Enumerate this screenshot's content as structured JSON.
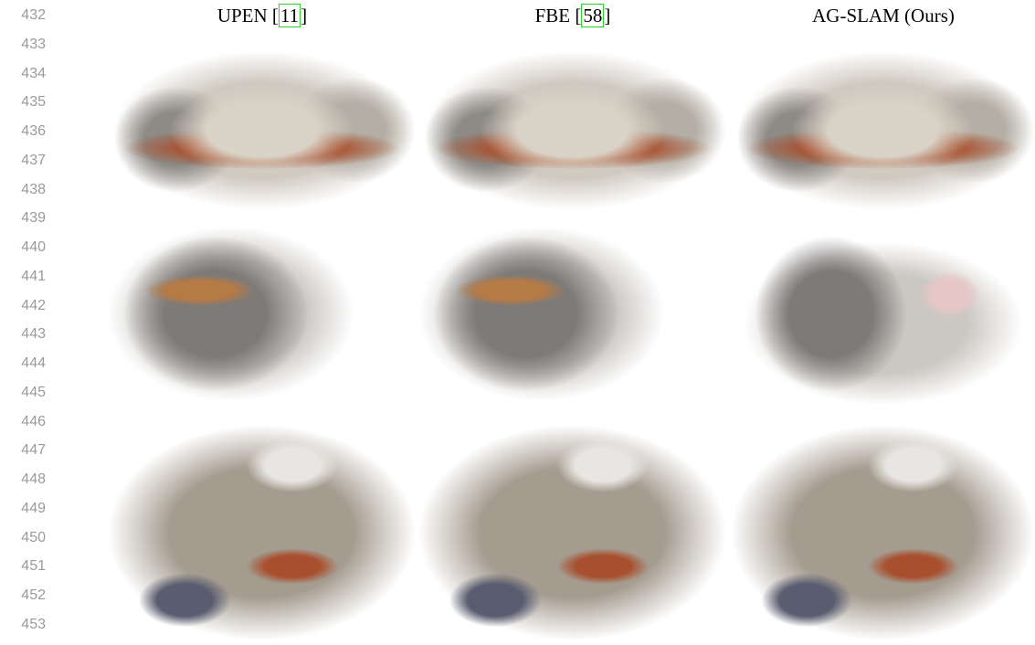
{
  "line_numbers": [
    "432",
    "433",
    "434",
    "435",
    "436",
    "437",
    "438",
    "439",
    "440",
    "441",
    "442",
    "443",
    "444",
    "445",
    "446",
    "447",
    "448",
    "449",
    "450",
    "451",
    "452",
    "453"
  ],
  "columns": [
    {
      "prefix": "UPEN [",
      "citation": "11",
      "suffix": "]"
    },
    {
      "prefix": "FBE [",
      "citation": "58",
      "suffix": "]"
    },
    {
      "prefix": "AG-SLAM (Ours)"
    }
  ]
}
